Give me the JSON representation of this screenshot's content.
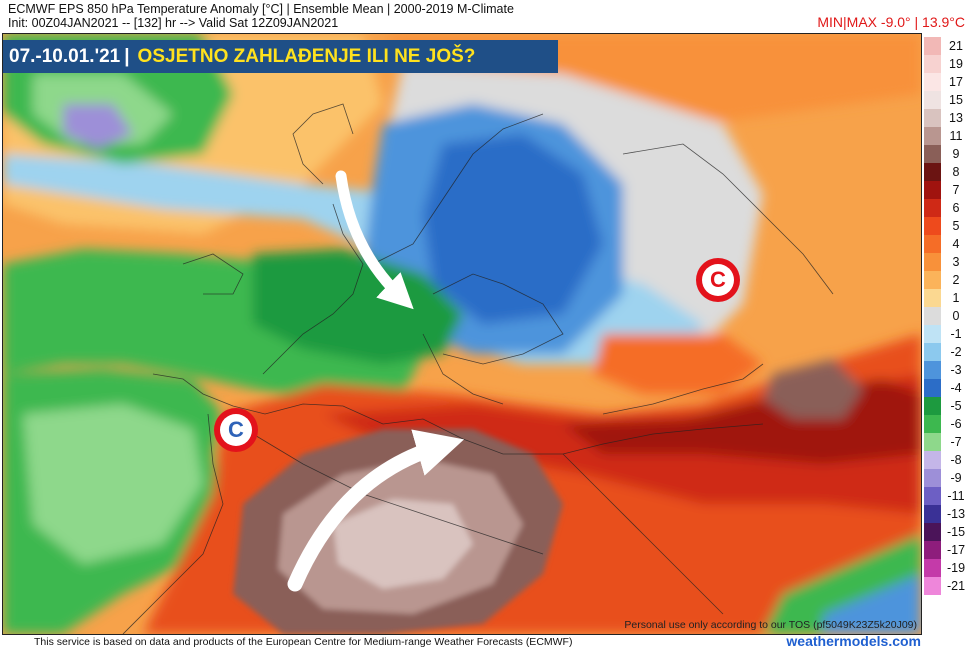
{
  "header": {
    "line1": "ECMWF EPS 850 hPa Temperature Anomaly [°C] | Ensemble Mean | 2000-2019 M-Climate",
    "line2": "Init: 00Z04JAN2021 -- [132] hr --> Valid Sat 12Z09JAN2021",
    "minmax": "MIN|MAX -9.0° | 13.9°C"
  },
  "banner": {
    "date": "07.-10.01.'21",
    "separator": "|",
    "title": "OSJETNO ZAHLAĐENJE ILI NE JOŠ?"
  },
  "markers": [
    {
      "letter": "C"
    },
    {
      "letter": "C"
    }
  ],
  "legend": {
    "items": [
      {
        "label": "21",
        "color": "#f2b8b6"
      },
      {
        "label": "19",
        "color": "#f7d2d0"
      },
      {
        "label": "17",
        "color": "#fbe6e5"
      },
      {
        "label": "15",
        "color": "#efe3e2"
      },
      {
        "label": "13",
        "color": "#d9c3bf"
      },
      {
        "label": "11",
        "color": "#b99690"
      },
      {
        "label": "9",
        "color": "#8a5f58"
      },
      {
        "label": "8",
        "color": "#6b1412"
      },
      {
        "label": "7",
        "color": "#a0130f"
      },
      {
        "label": "6",
        "color": "#cf2916"
      },
      {
        "label": "5",
        "color": "#ee4a1c"
      },
      {
        "label": "4",
        "color": "#f56d27"
      },
      {
        "label": "3",
        "color": "#f8913a"
      },
      {
        "label": "2",
        "color": "#fbb35a"
      },
      {
        "label": "1",
        "color": "#fbd891"
      },
      {
        "label": "0",
        "color": "#dcdcdc"
      },
      {
        "label": "-1",
        "color": "#bfe3f5"
      },
      {
        "label": "-2",
        "color": "#8cc9ee"
      },
      {
        "label": "-3",
        "color": "#4e94dc"
      },
      {
        "label": "-4",
        "color": "#2c6dc7"
      },
      {
        "label": "-5",
        "color": "#1d9a3f"
      },
      {
        "label": "-6",
        "color": "#3db84f"
      },
      {
        "label": "-7",
        "color": "#8ed88b"
      },
      {
        "label": "-8",
        "color": "#c4b6e8"
      },
      {
        "label": "-9",
        "color": "#9d8fd8"
      },
      {
        "label": "-11",
        "color": "#6d5fc4"
      },
      {
        "label": "-13",
        "color": "#3a3196"
      },
      {
        "label": "-15",
        "color": "#4b1459"
      },
      {
        "label": "-17",
        "color": "#8e1d7c"
      },
      {
        "label": "-19",
        "color": "#c43aa9"
      },
      {
        "label": "-21",
        "color": "#ee86da"
      }
    ]
  },
  "tos": "Personal use only according to our TOS (pf5049K23Z5k20J09)",
  "footer": "This service is based on data and products of the European Centre for Medium-range Weather Forecasts (ECMWF)",
  "brand": "weathermodels.com"
}
